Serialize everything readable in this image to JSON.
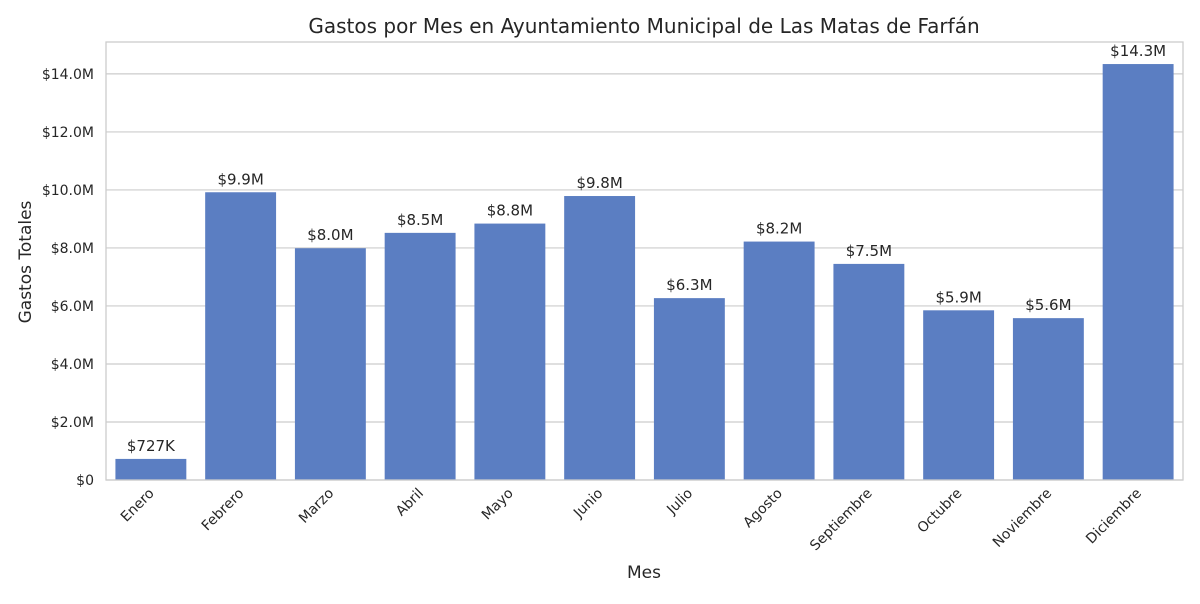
{
  "chart_data": {
    "type": "bar",
    "title": "Gastos por Mes en Ayuntamiento Municipal de Las Matas de Farfán",
    "xlabel": "Mes",
    "ylabel": "Gastos Totales",
    "categories": [
      "Enero",
      "Febrero",
      "Marzo",
      "Abril",
      "Mayo",
      "Junio",
      "Julio",
      "Agosto",
      "Septiembre",
      "Octubre",
      "Noviembre",
      "Diciembre"
    ],
    "values": [
      727000,
      9920000,
      7990000,
      8520000,
      8840000,
      9790000,
      6270000,
      8220000,
      7450000,
      5850000,
      5580000,
      14340000
    ],
    "value_labels": [
      "$727K",
      "$9.9M",
      "$8.0M",
      "$8.5M",
      "$8.8M",
      "$9.8M",
      "$6.3M",
      "$8.2M",
      "$7.5M",
      "$5.9M",
      "$5.6M",
      "$14.3M"
    ],
    "yticks": [
      0,
      2000000,
      4000000,
      6000000,
      8000000,
      10000000,
      12000000,
      14000000
    ],
    "ytick_labels": [
      "$0",
      "$2.0M",
      "$4.0M",
      "$6.0M",
      "$8.0M",
      "$10.0M",
      "$12.0M",
      "$14.0M"
    ],
    "ylim": [
      0,
      15100000
    ],
    "grid": "horizontal",
    "colors": {
      "bar": "#5b7ec2",
      "grid": "#cccccc",
      "spine": "#cccccc",
      "text": "#262626"
    }
  }
}
